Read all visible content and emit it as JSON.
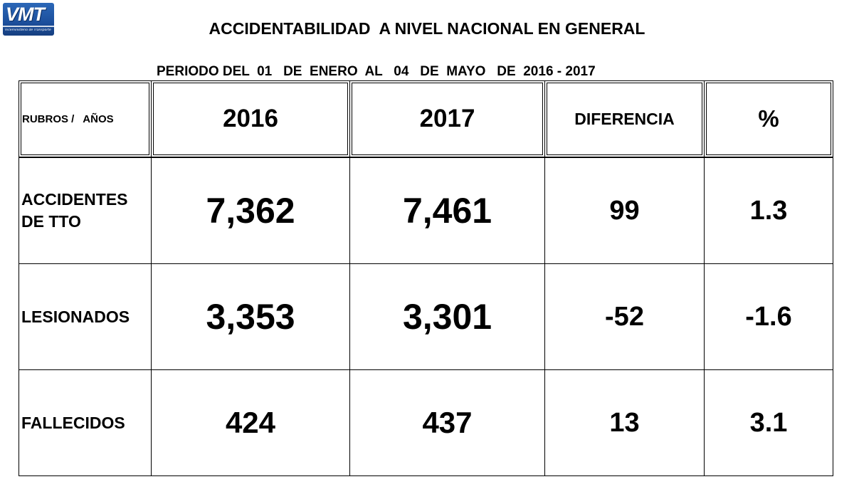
{
  "logo": {
    "text": "VMT",
    "subtext": "Viceministerio de Transporte"
  },
  "title": "ACCIDENTABILIDAD  A NIVEL NACIONAL EN GENERAL",
  "subtitle": "PERIODO DEL  01   DE  ENERO  AL   04   DE  MAYO   DE  2016 - 2017",
  "table": {
    "header": {
      "rubros": "RUBROS /   AÑOS",
      "y2016": "2016",
      "y2017": "2017",
      "diferencia": "DIFERENCIA",
      "pct": "%"
    },
    "rows": [
      {
        "label_l1": "ACCIDENTES",
        "label_l2": "DE TTO",
        "v2016": "7,362",
        "v2017": "7,461",
        "diferencia": "99",
        "pct": "1.3"
      },
      {
        "label_l1": "LESIONADOS",
        "v2016": "3,353",
        "v2017": "3,301",
        "diferencia": "-52",
        "pct": "-1.6"
      },
      {
        "label_l1": "FALLECIDOS",
        "v2016": "424",
        "v2017": "437",
        "diferencia": "13",
        "pct": "3.1"
      }
    ]
  }
}
